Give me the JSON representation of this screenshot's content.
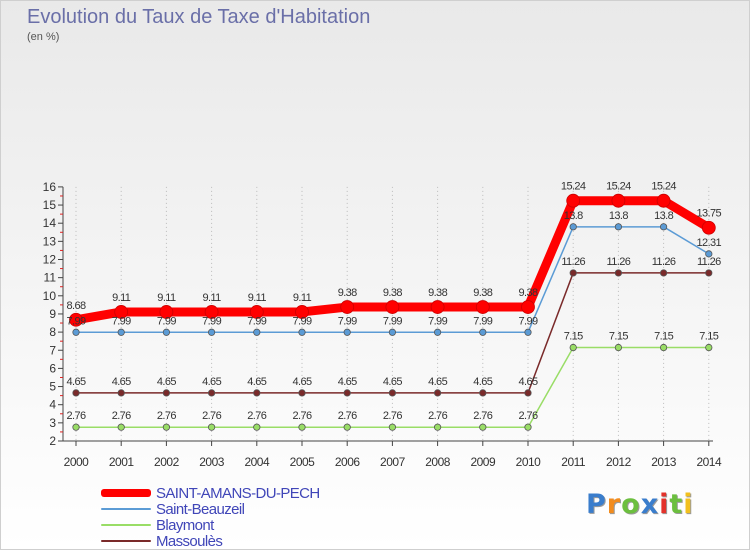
{
  "header": {
    "title": "Evolution du Taux de Taxe d'Habitation",
    "subtitle": "(en %)"
  },
  "logo": {
    "text": "Proxiti",
    "letter_colors": [
      "#3a7dcc",
      "#f28c1e",
      "#6cbf3f",
      "#3a7dcc",
      "#e3322b",
      "#6cbf3f",
      "#f2c01e"
    ]
  },
  "chart_data": {
    "type": "line",
    "x": [
      "2000",
      "2001",
      "2002",
      "2003",
      "2004",
      "2005",
      "2006",
      "2007",
      "2008",
      "2009",
      "2010",
      "2011",
      "2012",
      "2013",
      "2014"
    ],
    "yticks": [
      "2",
      "3",
      "4",
      "5",
      "6",
      "7",
      "8",
      "9",
      "10",
      "11",
      "12",
      "13",
      "14",
      "15",
      "16"
    ],
    "ylim": [
      2,
      16
    ],
    "grid": "vertical dotted",
    "legend": "bottom-left",
    "series": [
      {
        "name": "SAINT-AMANS-DU-PECH",
        "color": "#ff0000",
        "width": 9,
        "labels": [
          "8.68",
          "9.11",
          "9.11",
          "9.11",
          "9.11",
          "9.11",
          "9.38",
          "9.38",
          "9.38",
          "9.38",
          "9.38",
          "15.24",
          "15.24",
          "15.24",
          "13.75"
        ],
        "values": [
          8.68,
          9.11,
          9.11,
          9.11,
          9.11,
          9.11,
          9.38,
          9.38,
          9.38,
          9.38,
          9.38,
          15.24,
          15.24,
          15.24,
          13.75
        ]
      },
      {
        "name": "Saint-Beauzeil",
        "color": "#5b9bd5",
        "width": 1.5,
        "labels": [
          "7.99",
          "7.99",
          "7.99",
          "7.99",
          "7.99",
          "7.99",
          "7.99",
          "7.99",
          "7.99",
          "7.99",
          "7.99",
          "13.8",
          "13.8",
          "13.8",
          "12.31"
        ],
        "values": [
          7.99,
          7.99,
          7.99,
          7.99,
          7.99,
          7.99,
          7.99,
          7.99,
          7.99,
          7.99,
          7.99,
          13.8,
          13.8,
          13.8,
          12.31
        ]
      },
      {
        "name": "Blaymont",
        "color": "#99dd66",
        "width": 1.5,
        "labels": [
          "2.76",
          "2.76",
          "2.76",
          "2.76",
          "2.76",
          "2.76",
          "2.76",
          "2.76",
          "2.76",
          "2.76",
          "2.76",
          "7.15",
          "7.15",
          "7.15",
          "7.15"
        ],
        "values": [
          2.76,
          2.76,
          2.76,
          2.76,
          2.76,
          2.76,
          2.76,
          2.76,
          2.76,
          2.76,
          2.76,
          7.15,
          7.15,
          7.15,
          7.15
        ]
      },
      {
        "name": "Massoulès",
        "color": "#7a2a2a",
        "width": 1.5,
        "labels": [
          "4.65",
          "4.65",
          "4.65",
          "4.65",
          "4.65",
          "4.65",
          "4.65",
          "4.65",
          "4.65",
          "4.65",
          "4.65",
          "11.26",
          "11.26",
          "11.26",
          "11.26"
        ],
        "values": [
          4.65,
          4.65,
          4.65,
          4.65,
          4.65,
          4.65,
          4.65,
          4.65,
          4.65,
          4.65,
          4.65,
          11.26,
          11.26,
          11.26,
          11.26
        ]
      }
    ]
  }
}
